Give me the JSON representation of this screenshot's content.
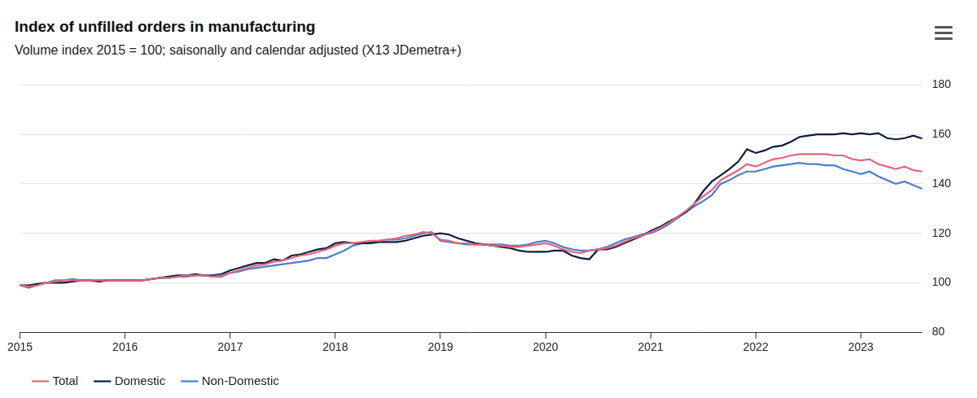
{
  "chart_data": {
    "type": "line",
    "title": "Index of unfilled orders in manufacturing",
    "subtitle": "Volume index 2015 = 100; saisonally and calendar adjusted (X13 JDemetra+)",
    "categories": [
      "2015",
      null,
      null,
      null,
      null,
      null,
      null,
      null,
      null,
      null,
      null,
      null,
      "2016",
      null,
      null,
      null,
      null,
      null,
      null,
      null,
      null,
      null,
      null,
      null,
      "2017",
      null,
      null,
      null,
      null,
      null,
      null,
      null,
      null,
      null,
      null,
      null,
      "2018",
      null,
      null,
      null,
      null,
      null,
      null,
      null,
      null,
      null,
      null,
      null,
      "2019",
      null,
      null,
      null,
      null,
      null,
      null,
      null,
      null,
      null,
      null,
      null,
      "2020",
      null,
      null,
      null,
      null,
      null,
      null,
      null,
      null,
      null,
      null,
      null,
      "2021",
      null,
      null,
      null,
      null,
      null,
      null,
      null,
      null,
      null,
      null,
      null,
      "2022",
      null,
      null,
      null,
      null,
      null,
      null,
      null,
      null,
      null,
      null,
      null,
      "2023",
      null,
      null,
      null,
      null,
      null,
      null,
      null
    ],
    "series": [
      {
        "name": "Total",
        "color": "#e8637a",
        "values": [
          99,
          98.5,
          99,
          100,
          100.5,
          101,
          101,
          101,
          101,
          101,
          101,
          101,
          101,
          101,
          101,
          101.5,
          102,
          102,
          102.5,
          103,
          103,
          103,
          102.5,
          103,
          104,
          105,
          106,
          107,
          107.5,
          108.5,
          109,
          110,
          111,
          111.5,
          112.5,
          113.5,
          115,
          116,
          116,
          116.5,
          117,
          117,
          117.5,
          118,
          119,
          119.5,
          120.5,
          120,
          117.5,
          117,
          116,
          116,
          115.5,
          115.5,
          115,
          115,
          114.5,
          114.5,
          115,
          115.5,
          116,
          115,
          113.5,
          112.5,
          112,
          113,
          113.5,
          114,
          115,
          116.5,
          118,
          119,
          120.5,
          122,
          124,
          126.5,
          129,
          132,
          135,
          137.5,
          141.5,
          143.5,
          145.5,
          148,
          147,
          148.5,
          150,
          150.5,
          151.5,
          152,
          152,
          152,
          152,
          151.5,
          151.5,
          150,
          149.5,
          150,
          148,
          147,
          146,
          147,
          145.5,
          145
        ]
      },
      {
        "name": "Domestic",
        "color": "#0c1c3d",
        "values": [
          99,
          99,
          99.5,
          100,
          100,
          100,
          100.5,
          101,
          101,
          100.5,
          101,
          101,
          101,
          101,
          101,
          101.5,
          102,
          102.5,
          103,
          103,
          103.5,
          103,
          103,
          103.5,
          105,
          106,
          107,
          108,
          108,
          109.5,
          109,
          111,
          111.5,
          112.5,
          113.5,
          114,
          116,
          116.5,
          116,
          116,
          116,
          116.5,
          116.5,
          116.5,
          117,
          118,
          119,
          119.5,
          120,
          119.5,
          118,
          117,
          116,
          115.5,
          115,
          114.5,
          114,
          113,
          112.5,
          112.5,
          112.5,
          113,
          113,
          111,
          110,
          109.5,
          113.5,
          113.5,
          114.5,
          116,
          117.5,
          119,
          121,
          122.5,
          124.5,
          126.5,
          128.5,
          132,
          137,
          141,
          143.5,
          146,
          149,
          154,
          152.5,
          153.5,
          155,
          155.5,
          157,
          159,
          159.5,
          160,
          160,
          160,
          160.5,
          160,
          160.5,
          160,
          160.5,
          158.5,
          158,
          158.5,
          159.5,
          158.3
        ]
      },
      {
        "name": "Non-Domestic",
        "color": "#4a7fcc",
        "values": [
          99,
          98,
          99,
          100,
          101,
          101,
          101.5,
          101,
          101,
          101,
          101,
          101,
          101,
          101,
          101,
          101.5,
          102,
          102,
          102.5,
          102.5,
          103,
          103,
          102.5,
          102.5,
          104,
          104.5,
          105.5,
          106,
          106.5,
          107,
          107.5,
          108,
          108.5,
          109,
          110,
          110,
          111.5,
          113,
          115,
          116,
          116.5,
          117,
          117.5,
          117.5,
          118,
          119,
          120,
          120.5,
          117,
          116.5,
          116,
          115.5,
          115.5,
          115.5,
          115.5,
          115.5,
          115,
          115,
          115.5,
          116.5,
          117,
          116,
          114.5,
          113.5,
          113,
          113,
          113.5,
          114.5,
          116,
          117.5,
          118.5,
          119.5,
          120,
          121.5,
          123.5,
          126,
          128.5,
          131,
          133,
          135.5,
          140,
          141.5,
          143.5,
          145,
          145,
          146,
          147,
          147.5,
          148,
          148.5,
          148,
          148,
          147.5,
          147.5,
          146,
          145,
          144,
          145,
          143,
          141.5,
          140,
          141,
          139.5,
          138
        ]
      }
    ],
    "ylim": [
      80,
      180
    ],
    "yticks": [
      80,
      100,
      120,
      140,
      160,
      180
    ],
    "grid": true,
    "legend": "bottom-left"
  }
}
